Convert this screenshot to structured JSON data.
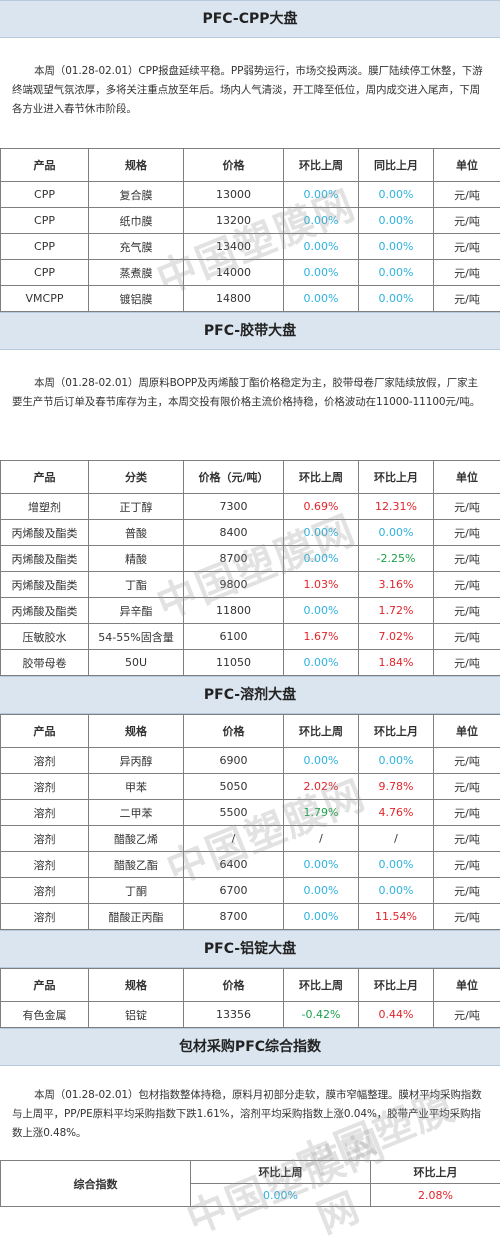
{
  "watermark": "中国塑膜网",
  "cpp": {
    "title": "PFC-CPP大盘",
    "intro": "本周（01.28-02.01）CPP报盘延续平稳。PP弱势运行，市场交投两淡。膜厂陆续停工休整，下游终端观望气氛浓厚，多将关注重点放至年后。场内人气清淡，开工降至低位，周内成交进入尾声，下周各方业进入春节休市阶段。",
    "headers": [
      "产品",
      "规格",
      "价格",
      "环比上周",
      "同比上月",
      "单位"
    ],
    "rows": [
      [
        "CPP",
        "复合膜",
        "13000",
        "0.00%",
        "0.00%",
        "元/吨"
      ],
      [
        "CPP",
        "纸巾膜",
        "13200",
        "0.00%",
        "0.00%",
        "元/吨"
      ],
      [
        "CPP",
        "充气膜",
        "13400",
        "0.00%",
        "0.00%",
        "元/吨"
      ],
      [
        "CPP",
        "蒸煮膜",
        "14000",
        "0.00%",
        "0.00%",
        "元/吨"
      ],
      [
        "VMCPP",
        "镀铝膜",
        "14800",
        "0.00%",
        "0.00%",
        "元/吨"
      ]
    ]
  },
  "tape": {
    "title": "PFC-胶带大盘",
    "intro": "本周（01.28-02.01）周原料BOPP及丙烯酸丁酯价格稳定为主，胶带母卷厂家陆续放假，厂家主要生产节后订单及春节库存为主，本周交投有限价格主流价格持稳，价格波动在11000-11100元/吨。",
    "headers": [
      "产品",
      "分类",
      "价格（元/吨）",
      "环比上周",
      "环比上月",
      "单位"
    ],
    "rows": [
      [
        "增塑剂",
        "正丁醇",
        "7300",
        "0.69%",
        "12.31%",
        "元/吨"
      ],
      [
        "丙烯酸及酯类",
        "普酸",
        "8400",
        "0.00%",
        "0.00%",
        "元/吨"
      ],
      [
        "丙烯酸及酯类",
        "精酸",
        "8700",
        "0.00%",
        "-2.25%",
        "元/吨"
      ],
      [
        "丙烯酸及酯类",
        "丁酯",
        "9800",
        "1.03%",
        "3.16%",
        "元/吨"
      ],
      [
        "丙烯酸及酯类",
        "异辛酯",
        "11800",
        "0.00%",
        "1.72%",
        "元/吨"
      ],
      [
        "压敏胶水",
        "54-55%固含量",
        "6100",
        "1.67%",
        "7.02%",
        "元/吨"
      ],
      [
        "胶带母卷",
        "50U",
        "11050",
        "0.00%",
        "1.84%",
        "元/吨"
      ]
    ],
    "colors": [
      [
        "red",
        "red"
      ],
      [
        "blue",
        "blue"
      ],
      [
        "blue",
        "green"
      ],
      [
        "red",
        "red"
      ],
      [
        "blue",
        "red"
      ],
      [
        "red",
        "red"
      ],
      [
        "blue",
        "red"
      ]
    ]
  },
  "solvent": {
    "title": "PFC-溶剂大盘",
    "headers": [
      "产品",
      "规格",
      "价格",
      "环比上周",
      "环比上月",
      "单位"
    ],
    "rows": [
      [
        "溶剂",
        "异丙醇",
        "6900",
        "0.00%",
        "0.00%",
        "元/吨"
      ],
      [
        "溶剂",
        "甲苯",
        "5050",
        "2.02%",
        "9.78%",
        "元/吨"
      ],
      [
        "溶剂",
        "二甲苯",
        "5500",
        "1.79%",
        "4.76%",
        "元/吨"
      ],
      [
        "溶剂",
        "醋酸乙烯",
        "/",
        "/",
        "/",
        "元/吨"
      ],
      [
        "溶剂",
        "醋酸乙酯",
        "6400",
        "0.00%",
        "0.00%",
        "元/吨"
      ],
      [
        "溶剂",
        "丁酮",
        "6700",
        "0.00%",
        "0.00%",
        "元/吨"
      ],
      [
        "溶剂",
        "醋酸正丙酯",
        "8700",
        "0.00%",
        "11.54%",
        "元/吨"
      ]
    ],
    "colors": [
      [
        "blue",
        "blue"
      ],
      [
        "red",
        "red"
      ],
      [
        "green",
        "red"
      ],
      [
        "",
        ""
      ],
      [
        "blue",
        "blue"
      ],
      [
        "blue",
        "blue"
      ],
      [
        "blue",
        "red"
      ]
    ]
  },
  "alu": {
    "title": "PFC-铝锭大盘",
    "headers": [
      "产品",
      "规格",
      "价格",
      "环比上周",
      "环比上月",
      "单位"
    ],
    "rows": [
      [
        "有色金属",
        "铝锭",
        "13356",
        "-0.42%",
        "0.44%",
        "元/吨"
      ]
    ],
    "colors": [
      [
        "green",
        "red"
      ]
    ]
  },
  "index": {
    "title": "包材采购PFC综合指数",
    "intro": "本周（01.28-02.01）包材指数整体持稳，原料月初部分走软，膜市窄幅整理。膜材平均采购指数与上周平，PP/PE原料平均采购指数下跌1.61%，溶剂平均采购指数上涨0.04%，胶带产业平均采购指数上涨0.48%。",
    "label": "综合指数",
    "wk_label": "环比上周",
    "mo_label": "环比上月",
    "wk_value": "0.00%",
    "mo_value": "2.08%"
  }
}
